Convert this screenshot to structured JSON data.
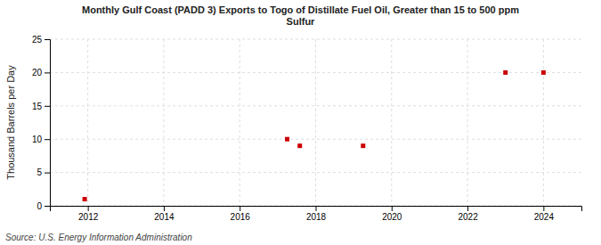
{
  "chart_data": {
    "type": "scatter",
    "title": "Monthly Gulf Coast (PADD 3) Exports to Togo of Distillate Fuel Oil, Greater than 15 to 500 ppm\nSulfur",
    "ylabel": "Thousand Barrels per Day",
    "source": "Source: U.S. Energy Information Administration",
    "x": [
      2011.917,
      2017.25,
      2017.583,
      2019.25,
      2023.0,
      2024.0
    ],
    "values": [
      1,
      10,
      9,
      9,
      20,
      20
    ],
    "color": "#cc0000",
    "marker": "square",
    "xlim": [
      2011.0,
      2025.0
    ],
    "ylim": [
      0,
      25
    ],
    "xticks": [
      2012,
      2014,
      2016,
      2018,
      2020,
      2022,
      2024
    ],
    "yticks": [
      0,
      5,
      10,
      15,
      20,
      25
    ],
    "grid": true
  }
}
